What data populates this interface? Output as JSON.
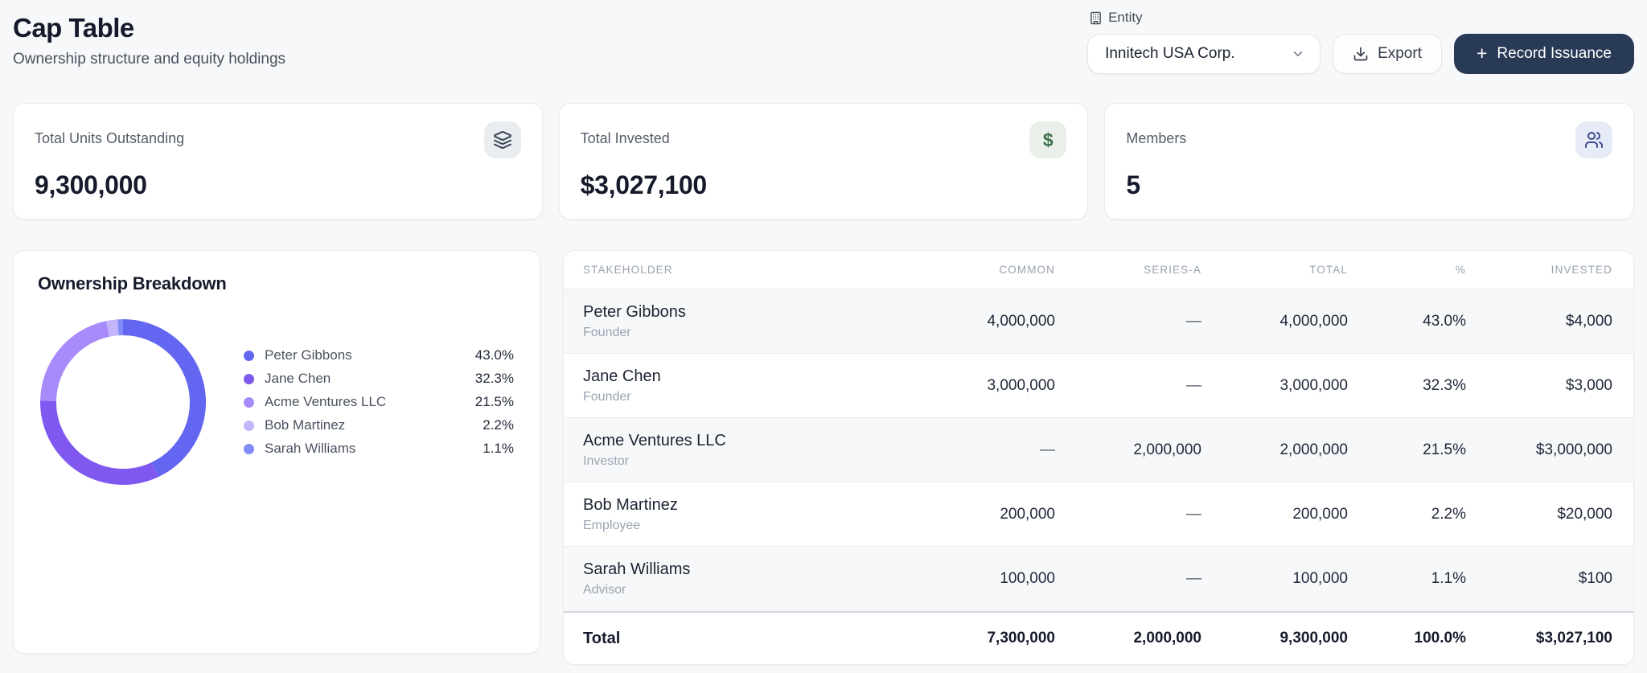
{
  "page": {
    "title": "Cap Table",
    "subtitle": "Ownership structure and equity holdings"
  },
  "header": {
    "entity_label": "Entity",
    "entity_value": "Innitech USA Corp.",
    "export_label": "Export",
    "record_plus": "+",
    "record_label": "Record Issuance"
  },
  "stats": [
    {
      "label": "Total Units Outstanding",
      "value": "9,300,000",
      "icon": "layers-icon"
    },
    {
      "label": "Total Invested",
      "value": "$3,027,100",
      "icon": "dollar-icon",
      "icon_glyph": "$"
    },
    {
      "label": "Members",
      "value": "5",
      "icon": "users-icon"
    }
  ],
  "ownership": {
    "title": "Ownership Breakdown"
  },
  "chart_data": {
    "type": "pie",
    "donut": true,
    "title": "Ownership Breakdown",
    "categories": [
      "Peter Gibbons",
      "Jane Chen",
      "Acme Ventures LLC",
      "Bob Martinez",
      "Sarah Williams"
    ],
    "values": [
      43.0,
      32.3,
      21.5,
      2.2,
      1.1
    ],
    "labels": [
      "43.0%",
      "32.3%",
      "21.5%",
      "2.2%",
      "1.1%"
    ],
    "colors": [
      "#6366f1",
      "#8058f0",
      "#a78bfa",
      "#c4b5fd",
      "#818cf8"
    ],
    "legend_position": "right",
    "start_angle_deg": 0,
    "direction": "clockwise"
  },
  "table": {
    "columns": [
      "STAKEHOLDER",
      "COMMON",
      "SERIES-A",
      "TOTAL",
      "%",
      "INVESTED"
    ],
    "rows": [
      {
        "name": "Peter Gibbons",
        "role": "Founder",
        "common": "4,000,000",
        "series_a": "—",
        "total": "4,000,000",
        "pct": "43.0%",
        "invested": "$4,000"
      },
      {
        "name": "Jane Chen",
        "role": "Founder",
        "common": "3,000,000",
        "series_a": "—",
        "total": "3,000,000",
        "pct": "32.3%",
        "invested": "$3,000"
      },
      {
        "name": "Acme Ventures LLC",
        "role": "Investor",
        "common": "—",
        "series_a": "2,000,000",
        "total": "2,000,000",
        "pct": "21.5%",
        "invested": "$3,000,000"
      },
      {
        "name": "Bob Martinez",
        "role": "Employee",
        "common": "200,000",
        "series_a": "—",
        "total": "200,000",
        "pct": "2.2%",
        "invested": "$20,000"
      },
      {
        "name": "Sarah Williams",
        "role": "Advisor",
        "common": "100,000",
        "series_a": "—",
        "total": "100,000",
        "pct": "1.1%",
        "invested": "$100"
      }
    ],
    "total_row": {
      "label": "Total",
      "common": "7,300,000",
      "series_a": "2,000,000",
      "total": "9,300,000",
      "pct": "100.0%",
      "invested": "$3,027,100"
    }
  },
  "colors": {
    "page_background": "#f7f8f9",
    "primary_button": "#293a56",
    "invested_green": "#3c7149",
    "members_indigo": "#3b4a8c",
    "zebra_row": "#f7f8fa"
  }
}
